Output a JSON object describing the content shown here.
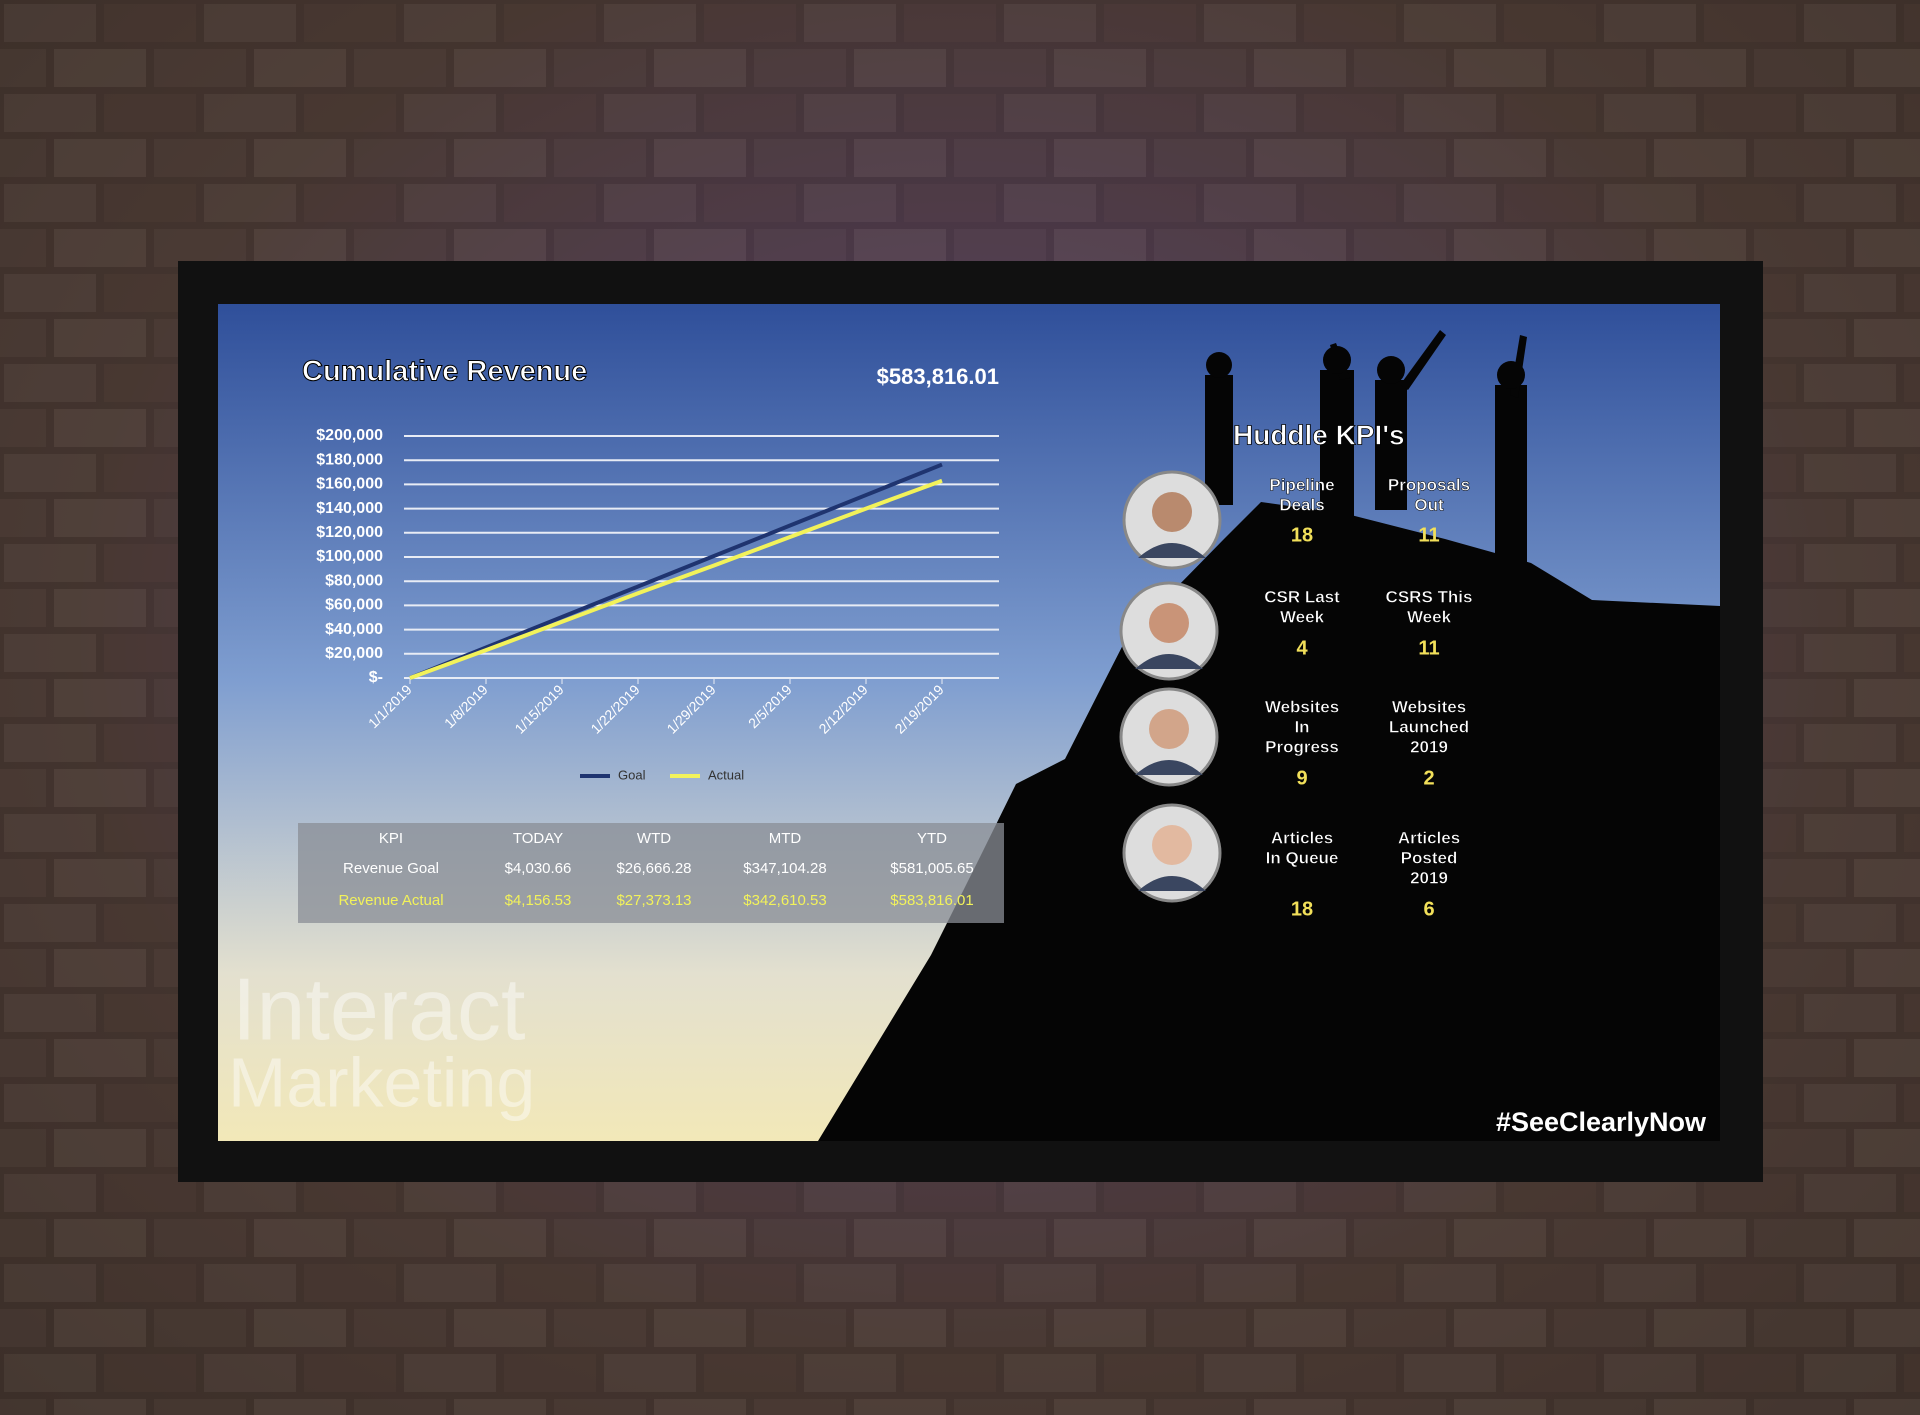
{
  "chart_data": {
    "type": "line",
    "title": "Cumulative Revenue",
    "categories": [
      "1/1/2019",
      "1/8/2019",
      "1/15/2019",
      "1/22/2019",
      "1/29/2019",
      "2/5/2019",
      "2/12/2019",
      "2/19/2019"
    ],
    "series": [
      {
        "name": "Goal",
        "color": "#1f3470",
        "values": [
          0,
          25200,
          50400,
          75600,
          100800,
          126000,
          151200,
          176400
        ]
      },
      {
        "name": "Actual",
        "color": "#f2f25a",
        "values": [
          0,
          23000,
          46500,
          70000,
          93000,
          116500,
          140000,
          163000
        ]
      }
    ],
    "ylim": [
      0,
      200000
    ],
    "yticks": [
      {
        "value": 0,
        "label": "$-"
      },
      {
        "value": 20000,
        "label": "$20,000"
      },
      {
        "value": 40000,
        "label": "$40,000"
      },
      {
        "value": 60000,
        "label": "$60,000"
      },
      {
        "value": 80000,
        "label": "$80,000"
      },
      {
        "value": 100000,
        "label": "$100,000"
      },
      {
        "value": 120000,
        "label": "$120,000"
      },
      {
        "value": 140000,
        "label": "$140,000"
      },
      {
        "value": 160000,
        "label": "$160,000"
      },
      {
        "value": 180000,
        "label": "$180,000"
      },
      {
        "value": 200000,
        "label": "$200,000"
      }
    ],
    "grid": true,
    "legend": "bottom"
  },
  "total": "$583,816.01",
  "table": {
    "header": [
      "KPI",
      "TODAY",
      "WTD",
      "MTD",
      "YTD"
    ],
    "rows": [
      [
        "Revenue Goal",
        "$4,030.66",
        "$26,666.28",
        "$347,104.28",
        "$581,005.65"
      ],
      [
        "Revenue Actual",
        "$4,156.53",
        "$27,373.13",
        "$342,610.53",
        "$583,816.01"
      ]
    ]
  },
  "kpi_panel": {
    "title": "Huddle KPI's",
    "people": [
      {
        "metrics": [
          {
            "label": [
              "Pipeline",
              "Deals"
            ],
            "value": "18"
          },
          {
            "label": [
              "Proposals",
              "Out"
            ],
            "value": "11"
          }
        ]
      },
      {
        "metrics": [
          {
            "label": [
              "CSR Last",
              "Week"
            ],
            "value": "4"
          },
          {
            "label": [
              "CSRS This",
              "Week"
            ],
            "value": "11"
          }
        ]
      },
      {
        "metrics": [
          {
            "label": [
              "Websites",
              "In",
              "Progress"
            ],
            "value": "9"
          },
          {
            "label": [
              "Websites",
              "Launched",
              "2019"
            ],
            "value": "2"
          }
        ]
      },
      {
        "metrics": [
          {
            "label": [
              "Articles",
              "In Queue"
            ],
            "value": "18"
          },
          {
            "label": [
              "Articles",
              "Posted",
              "2019"
            ],
            "value": "6"
          }
        ]
      }
    ]
  },
  "logo": {
    "line1": "Interact",
    "line2": "Marketing"
  },
  "hashtag": "#SeeClearlyNow"
}
